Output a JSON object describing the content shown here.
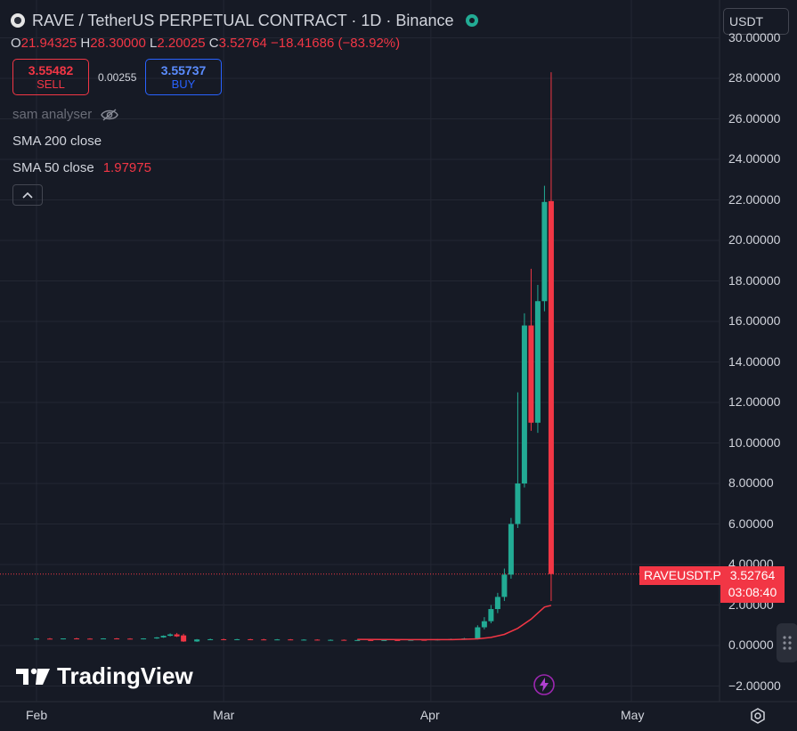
{
  "header": {
    "title": "RAVE / TetherUS PERPETUAL CONTRACT · 1D · Binance",
    "currency_selector": "USDT"
  },
  "ohlc": {
    "o_label": "O",
    "o_value": "21.94325",
    "h_label": "H",
    "h_value": "28.30000",
    "l_label": "L",
    "l_value": "2.20025",
    "c_label": "C",
    "c_value": "3.52764",
    "change": "−18.41686 (−83.92%)"
  },
  "trade": {
    "sell_price": "3.55482",
    "sell_label": "SELL",
    "spread": "0.00255",
    "buy_price": "3.55737",
    "buy_label": "BUY"
  },
  "legend": {
    "indicator_name": "sam analyser",
    "sma200_label": "SMA 200 close",
    "sma50_label": "SMA 50 close",
    "sma50_value": "1.97975"
  },
  "price_axis": {
    "ticks": [
      "30.00000",
      "28.00000",
      "26.00000",
      "24.00000",
      "22.00000",
      "20.00000",
      "18.00000",
      "16.00000",
      "14.00000",
      "12.00000",
      "10.00000",
      "8.00000",
      "6.00000",
      "4.00000",
      "2.00000",
      "0.00000",
      "−2.00000"
    ]
  },
  "time_axis": {
    "ticks": [
      "Feb",
      "Mar",
      "Apr",
      "May"
    ]
  },
  "last_price": {
    "symbol": "RAVEUSDT.P",
    "price": "3.52764",
    "countdown": "03:08:40"
  },
  "watermark": "TradingView",
  "colors": {
    "up": "#22ab94",
    "down": "#f23645",
    "background": "#161a25",
    "sma50": "#f23645"
  },
  "chart_data": {
    "type": "candlestick",
    "interval": "1D",
    "symbol": "RAVEUSDT.P",
    "ylim": [
      -2,
      30
    ],
    "x_range_days": [
      -3,
      123
    ],
    "x_day_origin": "Feb 1",
    "x_ticks": [
      {
        "label": "Feb",
        "day": 0
      },
      {
        "label": "Mar",
        "day": 28
      },
      {
        "label": "Apr",
        "day": 59
      },
      {
        "label": "May",
        "day": 89
      }
    ],
    "candles": [
      {
        "d": 0,
        "o": 0.33,
        "h": 0.36,
        "l": 0.3,
        "c": 0.34
      },
      {
        "d": 2,
        "o": 0.34,
        "h": 0.37,
        "l": 0.31,
        "c": 0.33
      },
      {
        "d": 4,
        "o": 0.33,
        "h": 0.35,
        "l": 0.3,
        "c": 0.35
      },
      {
        "d": 6,
        "o": 0.35,
        "h": 0.38,
        "l": 0.32,
        "c": 0.34
      },
      {
        "d": 8,
        "o": 0.34,
        "h": 0.36,
        "l": 0.31,
        "c": 0.33
      },
      {
        "d": 10,
        "o": 0.33,
        "h": 0.36,
        "l": 0.31,
        "c": 0.35
      },
      {
        "d": 12,
        "o": 0.35,
        "h": 0.37,
        "l": 0.32,
        "c": 0.34
      },
      {
        "d": 14,
        "o": 0.34,
        "h": 0.36,
        "l": 0.31,
        "c": 0.33
      },
      {
        "d": 16,
        "o": 0.33,
        "h": 0.36,
        "l": 0.3,
        "c": 0.35
      },
      {
        "d": 18,
        "o": 0.35,
        "h": 0.42,
        "l": 0.33,
        "c": 0.4
      },
      {
        "d": 19,
        "o": 0.4,
        "h": 0.5,
        "l": 0.38,
        "c": 0.48
      },
      {
        "d": 20,
        "o": 0.48,
        "h": 0.6,
        "l": 0.45,
        "c": 0.55
      },
      {
        "d": 21,
        "o": 0.55,
        "h": 0.62,
        "l": 0.42,
        "c": 0.45
      },
      {
        "d": 22,
        "o": 0.5,
        "h": 0.58,
        "l": 0.18,
        "c": 0.2
      },
      {
        "d": 24,
        "o": 0.2,
        "h": 0.32,
        "l": 0.18,
        "c": 0.3
      },
      {
        "d": 26,
        "o": 0.3,
        "h": 0.34,
        "l": 0.27,
        "c": 0.31
      },
      {
        "d": 28,
        "o": 0.31,
        "h": 0.34,
        "l": 0.28,
        "c": 0.3
      },
      {
        "d": 30,
        "o": 0.3,
        "h": 0.33,
        "l": 0.27,
        "c": 0.31
      },
      {
        "d": 32,
        "o": 0.31,
        "h": 0.33,
        "l": 0.28,
        "c": 0.3
      },
      {
        "d": 34,
        "o": 0.3,
        "h": 0.33,
        "l": 0.27,
        "c": 0.29
      },
      {
        "d": 36,
        "o": 0.29,
        "h": 0.32,
        "l": 0.27,
        "c": 0.3
      },
      {
        "d": 38,
        "o": 0.3,
        "h": 0.32,
        "l": 0.27,
        "c": 0.28
      },
      {
        "d": 40,
        "o": 0.28,
        "h": 0.31,
        "l": 0.26,
        "c": 0.29
      },
      {
        "d": 42,
        "o": 0.29,
        "h": 0.31,
        "l": 0.26,
        "c": 0.27
      },
      {
        "d": 44,
        "o": 0.27,
        "h": 0.3,
        "l": 0.25,
        "c": 0.28
      },
      {
        "d": 46,
        "o": 0.28,
        "h": 0.3,
        "l": 0.25,
        "c": 0.26
      },
      {
        "d": 48,
        "o": 0.26,
        "h": 0.29,
        "l": 0.24,
        "c": 0.27
      },
      {
        "d": 50,
        "o": 0.27,
        "h": 0.29,
        "l": 0.24,
        "c": 0.26
      },
      {
        "d": 52,
        "o": 0.26,
        "h": 0.29,
        "l": 0.24,
        "c": 0.27
      },
      {
        "d": 54,
        "o": 0.27,
        "h": 0.29,
        "l": 0.24,
        "c": 0.26
      },
      {
        "d": 56,
        "o": 0.26,
        "h": 0.3,
        "l": 0.24,
        "c": 0.28
      },
      {
        "d": 58,
        "o": 0.28,
        "h": 0.3,
        "l": 0.25,
        "c": 0.27
      },
      {
        "d": 60,
        "o": 0.27,
        "h": 0.32,
        "l": 0.25,
        "c": 0.3
      },
      {
        "d": 62,
        "o": 0.3,
        "h": 0.34,
        "l": 0.27,
        "c": 0.32
      },
      {
        "d": 64,
        "o": 0.32,
        "h": 0.38,
        "l": 0.28,
        "c": 0.35
      },
      {
        "d": 66,
        "o": 0.35,
        "h": 1.0,
        "l": 0.3,
        "c": 0.9
      },
      {
        "d": 67,
        "o": 0.9,
        "h": 1.4,
        "l": 0.8,
        "c": 1.2
      },
      {
        "d": 68,
        "o": 1.2,
        "h": 2.0,
        "l": 1.1,
        "c": 1.8
      },
      {
        "d": 69,
        "o": 1.8,
        "h": 2.6,
        "l": 1.6,
        "c": 2.4
      },
      {
        "d": 70,
        "o": 2.4,
        "h": 3.8,
        "l": 2.2,
        "c": 3.5
      },
      {
        "d": 71,
        "o": 3.5,
        "h": 6.3,
        "l": 3.3,
        "c": 6.0
      },
      {
        "d": 72,
        "o": 6.0,
        "h": 12.5,
        "l": 5.8,
        "c": 8.0
      },
      {
        "d": 73,
        "o": 8.0,
        "h": 16.4,
        "l": 7.8,
        "c": 15.8
      },
      {
        "d": 74,
        "o": 15.8,
        "h": 18.6,
        "l": 10.6,
        "c": 11.0
      },
      {
        "d": 75,
        "o": 11.0,
        "h": 17.8,
        "l": 10.5,
        "c": 17.0
      },
      {
        "d": 76,
        "o": 17.0,
        "h": 22.7,
        "l": 16.5,
        "c": 21.9
      },
      {
        "d": 77,
        "o": 21.94,
        "h": 28.3,
        "l": 2.2,
        "c": 3.53
      }
    ],
    "sma50": [
      {
        "d": 48,
        "v": 0.3
      },
      {
        "d": 56,
        "v": 0.29
      },
      {
        "d": 62,
        "v": 0.29
      },
      {
        "d": 66,
        "v": 0.33
      },
      {
        "d": 68,
        "v": 0.4
      },
      {
        "d": 70,
        "v": 0.55
      },
      {
        "d": 72,
        "v": 0.85
      },
      {
        "d": 74,
        "v": 1.3
      },
      {
        "d": 75,
        "v": 1.6
      },
      {
        "d": 76,
        "v": 1.9
      },
      {
        "d": 77,
        "v": 1.98
      }
    ],
    "last_price_line": 3.52764
  }
}
